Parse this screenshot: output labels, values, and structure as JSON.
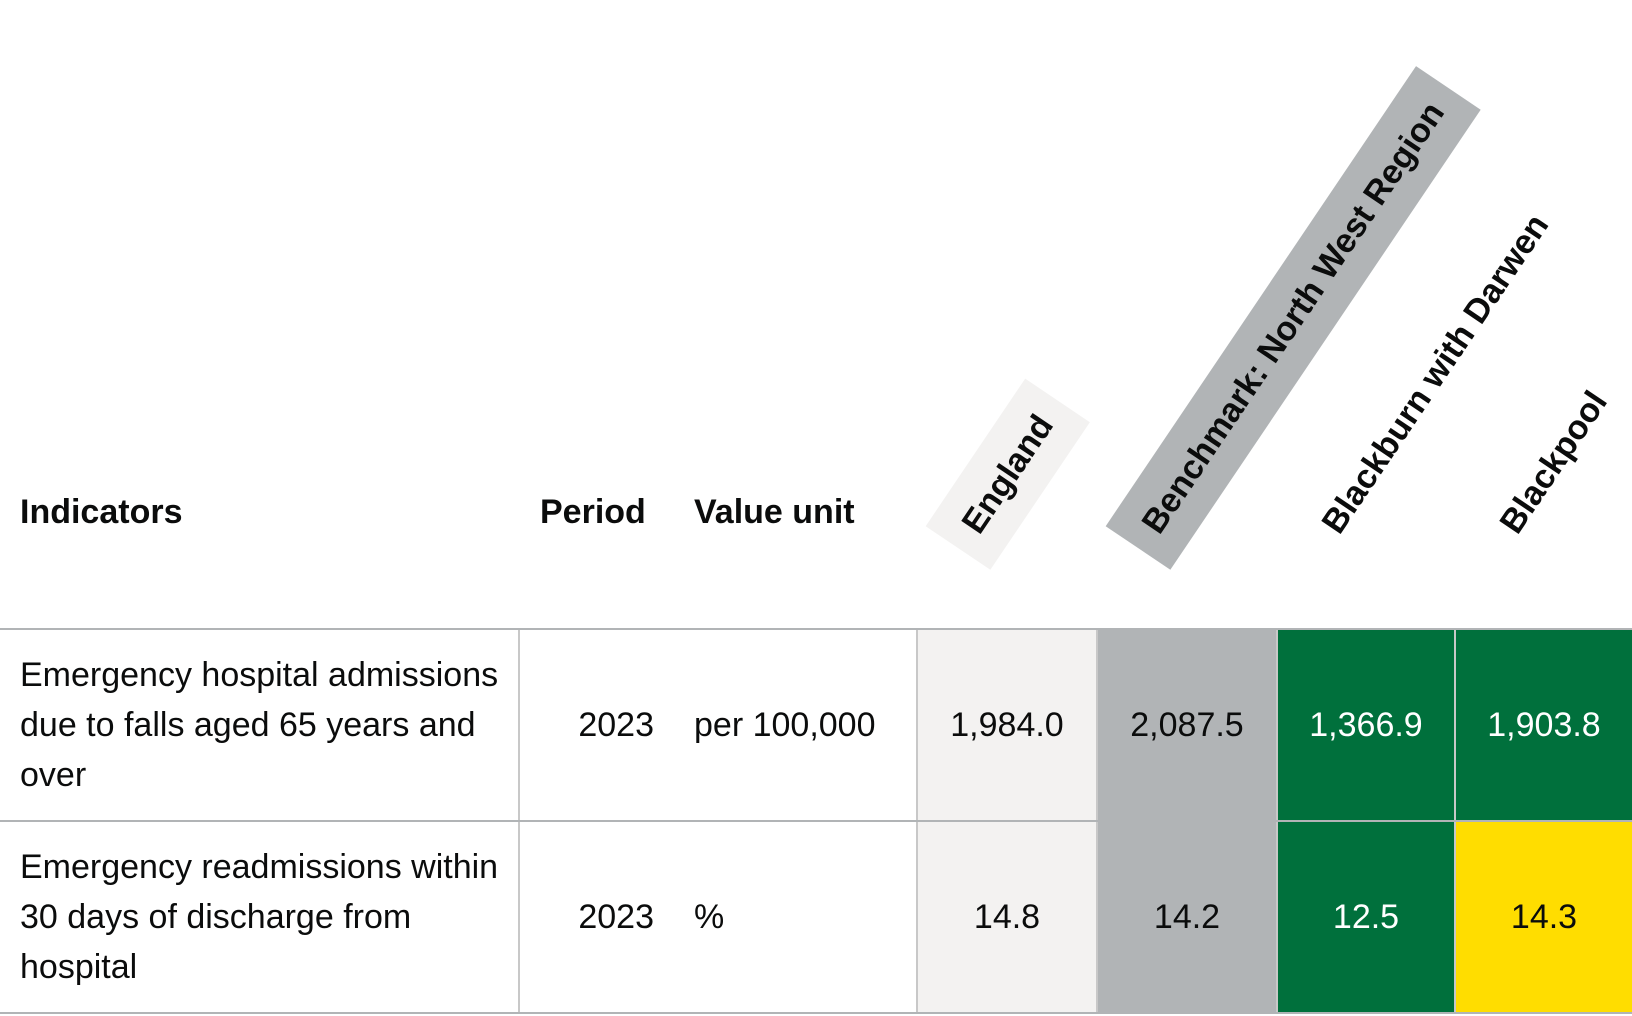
{
  "table": {
    "headers": {
      "indicators": "Indicators",
      "period": "Period",
      "value_unit": "Value unit",
      "england": "England",
      "benchmark": "Benchmark: North West Region",
      "area1": "Blackburn with Darwen",
      "area2": "Blackpool"
    },
    "rows": [
      {
        "indicator": "Emergency hospital admissions due to falls aged 65 years and over",
        "period": "2023",
        "unit": "per 100,000",
        "england": "1,984.0",
        "benchmark": "2,087.5",
        "area1": "1,366.9",
        "area2": "1,903.8",
        "area1_color": "#00703c",
        "area1_text": "#ffffff",
        "area2_color": "#00703c",
        "area2_text": "#ffffff"
      },
      {
        "indicator": "Emergency readmissions within 30 days of discharge from hospital",
        "period": "2023",
        "unit": "%",
        "england": "14.8",
        "benchmark": "14.2",
        "area1": "12.5",
        "area2": "14.3",
        "area1_color": "#00703c",
        "area1_text": "#ffffff",
        "area2_color": "#ffdd00",
        "area2_text": "#0b0c0c"
      }
    ]
  },
  "colors": {
    "england_bg": "#f3f2f1",
    "benchmark_bg": "#b1b4b6",
    "better": "#00703c",
    "similar": "#ffdd00"
  }
}
